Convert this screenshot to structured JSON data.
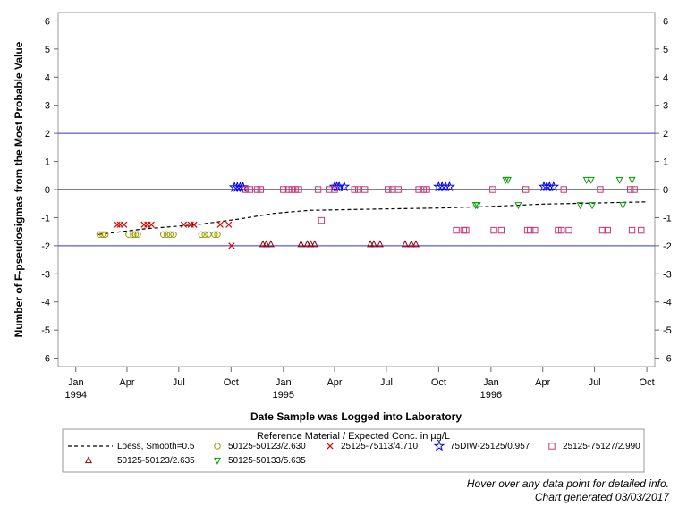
{
  "chart_data": {
    "type": "scatter",
    "ylabel": "Number of F-pseudosigmas from the Most Probable Value",
    "xlabel": "Date Sample was Logged into Laboratory",
    "xlim": [
      "1993-12-01",
      "1996-10-15"
    ],
    "ylim": [
      -6.3,
      6.3
    ],
    "yticks": [
      -6,
      -5,
      -4,
      -3,
      -2,
      -1,
      0,
      1,
      2,
      3,
      4,
      5,
      6
    ],
    "xticks": [
      {
        "date": "1994-01-01",
        "label": "Jan",
        "label2": "1994"
      },
      {
        "date": "1994-04-01",
        "label": "Apr",
        "label2": ""
      },
      {
        "date": "1994-07-01",
        "label": "Jul",
        "label2": ""
      },
      {
        "date": "1994-10-01",
        "label": "Oct",
        "label2": ""
      },
      {
        "date": "1995-01-01",
        "label": "Jan",
        "label2": "1995"
      },
      {
        "date": "1995-04-01",
        "label": "Apr",
        "label2": ""
      },
      {
        "date": "1995-07-01",
        "label": "Jul",
        "label2": ""
      },
      {
        "date": "1995-10-01",
        "label": "Oct",
        "label2": ""
      },
      {
        "date": "1996-01-01",
        "label": "Jan",
        "label2": "1996"
      },
      {
        "date": "1996-04-01",
        "label": "Apr",
        "label2": ""
      },
      {
        "date": "1996-07-01",
        "label": "Jul",
        "label2": ""
      },
      {
        "date": "1996-10-01",
        "label": "Oct",
        "label2": ""
      }
    ],
    "reference_lines": [
      {
        "y": 2,
        "color": "#3333cc"
      },
      {
        "y": 0,
        "color": "#000000"
      },
      {
        "y": -2,
        "color": "#3333cc"
      }
    ],
    "legend": {
      "title": "Reference Material / Expected Conc. in µg/L",
      "placement": "bottom"
    },
    "loess": {
      "name": "Loess, Smooth=0.5",
      "color": "#000000",
      "points": [
        {
          "x": "1994-02-10",
          "y": -1.6
        },
        {
          "x": "1994-05-01",
          "y": -1.4
        },
        {
          "x": "1994-08-01",
          "y": -1.25
        },
        {
          "x": "1994-10-15",
          "y": -1.05
        },
        {
          "x": "1994-12-15",
          "y": -0.85
        },
        {
          "x": "1995-02-15",
          "y": -0.74
        },
        {
          "x": "1995-06-01",
          "y": -0.7
        },
        {
          "x": "1995-10-01",
          "y": -0.66
        },
        {
          "x": "1996-01-01",
          "y": -0.6
        },
        {
          "x": "1996-04-01",
          "y": -0.52
        },
        {
          "x": "1996-07-01",
          "y": -0.48
        },
        {
          "x": "1996-10-01",
          "y": -0.44
        }
      ]
    },
    "series": [
      {
        "name": "50125-50123/2.630",
        "marker": "circle",
        "color": "#999900",
        "points": [
          {
            "x": "1994-02-12",
            "y": -1.6
          },
          {
            "x": "1994-02-17",
            "y": -1.6
          },
          {
            "x": "1994-02-22",
            "y": -1.6
          },
          {
            "x": "1994-04-04",
            "y": -1.6
          },
          {
            "x": "1994-04-12",
            "y": -1.6
          },
          {
            "x": "1994-04-16",
            "y": -1.6
          },
          {
            "x": "1994-04-20",
            "y": -1.6
          },
          {
            "x": "1994-06-04",
            "y": -1.6
          },
          {
            "x": "1994-06-10",
            "y": -1.6
          },
          {
            "x": "1994-06-16",
            "y": -1.6
          },
          {
            "x": "1994-06-22",
            "y": -1.6
          },
          {
            "x": "1994-08-10",
            "y": -1.6
          },
          {
            "x": "1994-08-16",
            "y": -1.6
          },
          {
            "x": "1994-08-22",
            "y": -1.6
          },
          {
            "x": "1994-09-02",
            "y": -1.6
          },
          {
            "x": "1994-09-07",
            "y": -1.6
          }
        ]
      },
      {
        "name": "25125-75113/4.710",
        "marker": "x",
        "color": "#dd0000",
        "points": [
          {
            "x": "1994-03-15",
            "y": -1.25
          },
          {
            "x": "1994-03-20",
            "y": -1.25
          },
          {
            "x": "1994-03-27",
            "y": -1.25
          },
          {
            "x": "1994-05-01",
            "y": -1.25
          },
          {
            "x": "1994-05-07",
            "y": -1.25
          },
          {
            "x": "1994-05-14",
            "y": -1.25
          },
          {
            "x": "1994-07-10",
            "y": -1.25
          },
          {
            "x": "1994-07-22",
            "y": -1.25
          },
          {
            "x": "1994-07-28",
            "y": -1.25
          },
          {
            "x": "1994-09-12",
            "y": -1.25
          },
          {
            "x": "1994-09-27",
            "y": -1.25
          },
          {
            "x": "1994-10-02",
            "y": -2.0
          }
        ]
      },
      {
        "name": "75DIW-25125/0.957",
        "marker": "star",
        "color": "#0000ee",
        "points": [
          {
            "x": "1994-10-07",
            "y": 0.08
          },
          {
            "x": "1994-10-12",
            "y": 0.08
          },
          {
            "x": "1994-10-17",
            "y": 0.08
          },
          {
            "x": "1994-10-22",
            "y": 0.08
          },
          {
            "x": "1995-04-01",
            "y": 0.1
          },
          {
            "x": "1995-04-05",
            "y": 0.1
          },
          {
            "x": "1995-04-09",
            "y": 0.1
          },
          {
            "x": "1995-04-18",
            "y": 0.1
          },
          {
            "x": "1995-10-01",
            "y": 0.1
          },
          {
            "x": "1995-10-07",
            "y": 0.1
          },
          {
            "x": "1995-10-13",
            "y": 0.1
          },
          {
            "x": "1995-10-20",
            "y": 0.1
          },
          {
            "x": "1996-04-03",
            "y": 0.1
          },
          {
            "x": "1996-04-08",
            "y": 0.1
          },
          {
            "x": "1996-04-13",
            "y": 0.1
          },
          {
            "x": "1996-04-20",
            "y": 0.1
          }
        ]
      },
      {
        "name": "25125-75127/2.990",
        "marker": "square",
        "color": "#cc3377",
        "points": [
          {
            "x": "1994-10-26",
            "y": 0.0
          },
          {
            "x": "1994-11-03",
            "y": 0.0
          },
          {
            "x": "1994-11-16",
            "y": 0.0
          },
          {
            "x": "1994-11-22",
            "y": 0.0
          },
          {
            "x": "1995-01-01",
            "y": 0.0
          },
          {
            "x": "1995-01-10",
            "y": 0.0
          },
          {
            "x": "1995-01-16",
            "y": 0.0
          },
          {
            "x": "1995-01-22",
            "y": 0.0
          },
          {
            "x": "1995-01-28",
            "y": 0.0
          },
          {
            "x": "1995-03-03",
            "y": 0.0
          },
          {
            "x": "1995-03-09",
            "y": -1.1
          },
          {
            "x": "1995-03-22",
            "y": 0.0
          },
          {
            "x": "1995-04-01",
            "y": 0.0
          },
          {
            "x": "1995-05-06",
            "y": 0.0
          },
          {
            "x": "1995-05-13",
            "y": 0.0
          },
          {
            "x": "1995-05-24",
            "y": 0.0
          },
          {
            "x": "1995-07-04",
            "y": 0.0
          },
          {
            "x": "1995-07-12",
            "y": 0.0
          },
          {
            "x": "1995-07-22",
            "y": 0.0
          },
          {
            "x": "1995-08-27",
            "y": 0.0
          },
          {
            "x": "1995-09-04",
            "y": 0.0
          },
          {
            "x": "1995-09-10",
            "y": 0.0
          },
          {
            "x": "1995-11-01",
            "y": -1.45
          },
          {
            "x": "1995-11-14",
            "y": -1.45
          },
          {
            "x": "1995-11-18",
            "y": -1.45
          },
          {
            "x": "1996-01-04",
            "y": 0.0
          },
          {
            "x": "1996-01-06",
            "y": -1.45
          },
          {
            "x": "1996-01-19",
            "y": -1.45
          },
          {
            "x": "1996-03-02",
            "y": 0.0
          },
          {
            "x": "1996-03-05",
            "y": -1.45
          },
          {
            "x": "1996-03-10",
            "y": -1.45
          },
          {
            "x": "1996-03-18",
            "y": -1.45
          },
          {
            "x": "1996-04-28",
            "y": -1.45
          },
          {
            "x": "1996-05-04",
            "y": -1.45
          },
          {
            "x": "1996-05-08",
            "y": 0.0
          },
          {
            "x": "1996-05-17",
            "y": -1.45
          },
          {
            "x": "1996-07-11",
            "y": 0.0
          },
          {
            "x": "1996-07-15",
            "y": -1.45
          },
          {
            "x": "1996-07-24",
            "y": -1.45
          },
          {
            "x": "1996-09-02",
            "y": 0.0
          },
          {
            "x": "1996-09-05",
            "y": -1.45
          },
          {
            "x": "1996-09-09",
            "y": 0.0
          },
          {
            "x": "1996-09-21",
            "y": -1.45
          }
        ]
      },
      {
        "name": "50125-50123/2.635",
        "marker": "triangle-up",
        "color": "#990000",
        "points": [
          {
            "x": "1994-11-26",
            "y": -1.95
          },
          {
            "x": "1994-12-02",
            "y": -1.95
          },
          {
            "x": "1994-12-10",
            "y": -1.95
          },
          {
            "x": "1995-02-01",
            "y": -1.95
          },
          {
            "x": "1995-02-12",
            "y": -1.95
          },
          {
            "x": "1995-02-18",
            "y": -1.95
          },
          {
            "x": "1995-02-25",
            "y": -1.95
          },
          {
            "x": "1995-06-03",
            "y": -1.95
          },
          {
            "x": "1995-06-09",
            "y": -1.95
          },
          {
            "x": "1995-06-20",
            "y": -1.95
          },
          {
            "x": "1995-08-03",
            "y": -1.95
          },
          {
            "x": "1995-08-14",
            "y": -1.95
          },
          {
            "x": "1995-08-22",
            "y": -1.95
          }
        ]
      },
      {
        "name": "50125-50133/5.635",
        "marker": "triangle-down",
        "color": "#009900",
        "points": [
          {
            "x": "1995-12-05",
            "y": -0.55
          },
          {
            "x": "1995-12-08",
            "y": -0.55
          },
          {
            "x": "1996-01-27",
            "y": 0.35
          },
          {
            "x": "1996-01-31",
            "y": 0.35
          },
          {
            "x": "1996-02-18",
            "y": -0.55
          },
          {
            "x": "1996-06-17",
            "y": 0.35
          },
          {
            "x": "1996-06-25",
            "y": 0.35
          },
          {
            "x": "1996-06-06",
            "y": -0.55
          },
          {
            "x": "1996-06-27",
            "y": -0.55
          },
          {
            "x": "1996-08-14",
            "y": 0.35
          },
          {
            "x": "1996-08-20",
            "y": -0.55
          },
          {
            "x": "1996-09-05",
            "y": 0.35
          }
        ]
      }
    ]
  },
  "footer": {
    "hover_note": "Hover over any data point for detailed info.",
    "generated": "Chart generated 03/03/2017"
  }
}
